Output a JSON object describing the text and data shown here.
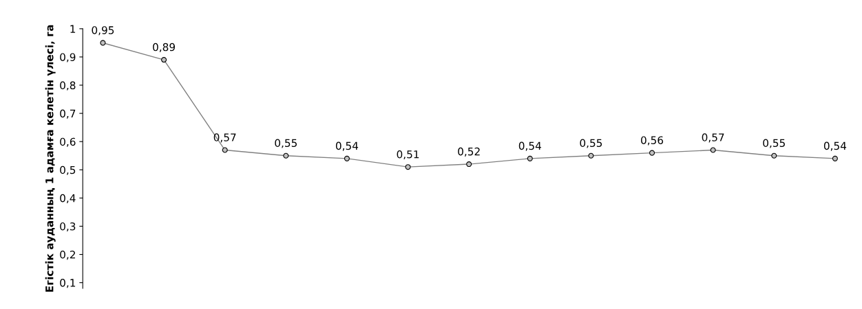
{
  "chart_data": {
    "type": "line",
    "ylabel": "Егістік ауданның 1 адамға келетін үлесі, га",
    "categories": [
      null,
      null,
      null,
      null,
      null,
      null,
      null,
      null,
      null,
      null,
      null,
      null,
      null
    ],
    "series": [
      {
        "color": "#808080",
        "values": [
          0.95,
          0.89,
          0.57,
          0.55,
          0.54,
          0.51,
          0.52,
          0.54,
          0.55,
          0.56,
          0.57,
          0.55,
          0.54
        ],
        "value_labels": [
          "0,95",
          "0,89",
          "0,57",
          "0,55",
          "0,54",
          "0,51",
          "0,52",
          "0,54",
          "0,55",
          "0,56",
          "0,57",
          "0,55",
          "0,54"
        ]
      }
    ],
    "ylim": [
      0.08,
      1.0
    ],
    "yticks": [
      {
        "value": 0.1,
        "label": "0,1"
      },
      {
        "value": 0.2,
        "label": "0,2"
      },
      {
        "value": 0.3,
        "label": "0,3"
      },
      {
        "value": 0.4,
        "label": "0,4"
      },
      {
        "value": 0.5,
        "label": "0,5"
      },
      {
        "value": 0.6,
        "label": "0,6"
      },
      {
        "value": 0.7,
        "label": "0,7"
      },
      {
        "value": 0.8,
        "label": "0,8"
      },
      {
        "value": 0.9,
        "label": "0,9"
      },
      {
        "value": 1,
        "label": "1"
      }
    ],
    "tick_labels": "y",
    "grid": false,
    "legend": false,
    "marker": "circle",
    "line_style": "solid"
  }
}
